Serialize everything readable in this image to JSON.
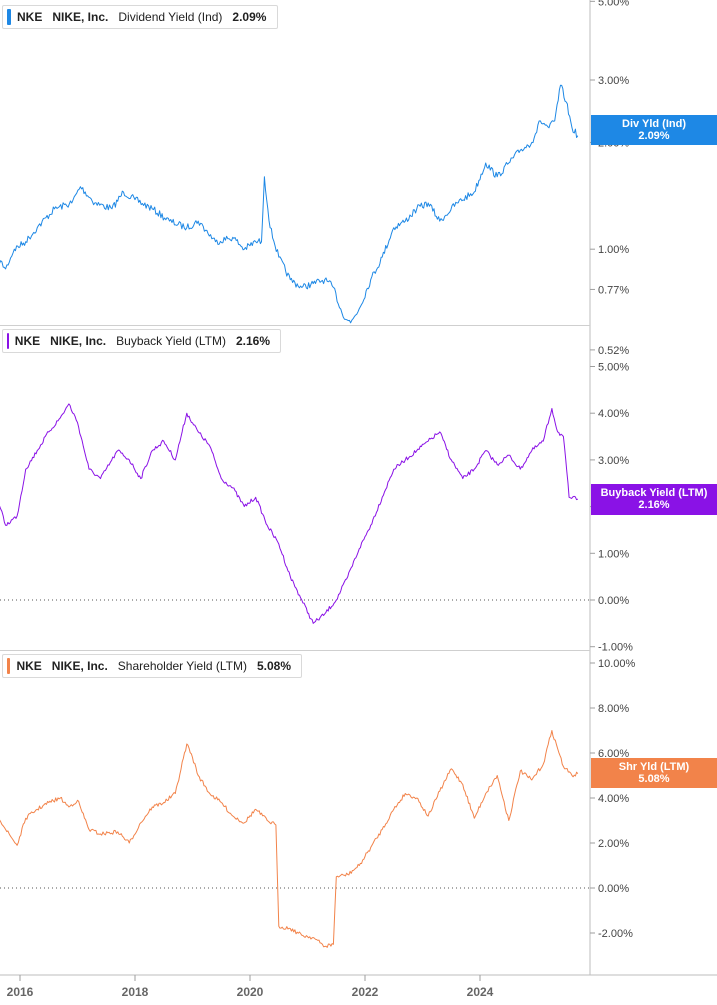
{
  "colors": {
    "dividend": "#1e88e5",
    "buyback": "#8a12e6",
    "shareholder": "#f2834a"
  },
  "x_axis": {
    "ticks": [
      "2016",
      "2018",
      "2020",
      "2022",
      "2024"
    ]
  },
  "panels": [
    {
      "ticker": "NKE",
      "company": "NIKE, Inc.",
      "metric": "Dividend Yield (Ind)",
      "value": "2.09%",
      "tag_label": "Div Yld (Ind)",
      "tag_value": "2.09%",
      "y_ticks": [
        "5.00%",
        "3.00%",
        "2.00%",
        "1.00%",
        "0.77%",
        "0.52%"
      ]
    },
    {
      "ticker": "NKE",
      "company": "NIKE, Inc.",
      "metric": "Buyback Yield (LTM)",
      "value": "2.16%",
      "tag_label": "Buyback Yield (LTM)",
      "tag_value": "2.16%",
      "y_ticks": [
        "5.00%",
        "4.00%",
        "3.00%",
        "2.00%",
        "1.00%",
        "0.00%",
        "-1.00%"
      ]
    },
    {
      "ticker": "NKE",
      "company": "NIKE, Inc.",
      "metric": "Shareholder Yield (LTM)",
      "value": "5.08%",
      "tag_label": "Shr Yld (LTM)",
      "tag_value": "5.08%",
      "y_ticks": [
        "10.00%",
        "8.00%",
        "6.00%",
        "4.00%",
        "2.00%",
        "0.00%",
        "-2.00%"
      ]
    }
  ],
  "chart_data": [
    {
      "type": "line",
      "title": "NKE NIKE, Inc. Dividend Yield (Ind) 2.09%",
      "y_scale": "log",
      "ylim": [
        0.52,
        5.0
      ],
      "xlim": [
        2015.6,
        2025.85
      ],
      "series": [
        {
          "name": "Dividend Yield (Ind)",
          "x": [
            2015.6,
            2015.75,
            2015.9,
            2016.1,
            2016.3,
            2016.6,
            2016.9,
            2017.05,
            2017.3,
            2017.6,
            2017.8,
            2018.0,
            2018.3,
            2018.6,
            2018.9,
            2019.1,
            2019.4,
            2019.7,
            2019.9,
            2020.1,
            2020.2,
            2020.25,
            2020.35,
            2020.5,
            2020.7,
            2020.9,
            2021.1,
            2021.3,
            2021.45,
            2021.6,
            2021.75,
            2021.9,
            2022.1,
            2022.3,
            2022.5,
            2022.7,
            2022.9,
            2023.1,
            2023.3,
            2023.6,
            2023.9,
            2024.1,
            2024.3,
            2024.5,
            2024.7,
            2024.9,
            2025.05,
            2025.2,
            2025.3,
            2025.4,
            2025.5,
            2025.6,
            2025.7
          ],
          "y": [
            0.95,
            0.88,
            1.0,
            1.05,
            1.15,
            1.3,
            1.35,
            1.5,
            1.35,
            1.3,
            1.45,
            1.38,
            1.3,
            1.2,
            1.15,
            1.2,
            1.05,
            1.08,
            1.0,
            1.05,
            1.05,
            1.6,
            1.15,
            0.95,
            0.82,
            0.78,
            0.8,
            0.82,
            0.78,
            0.66,
            0.62,
            0.68,
            0.82,
            0.95,
            1.15,
            1.2,
            1.3,
            1.35,
            1.2,
            1.35,
            1.45,
            1.75,
            1.6,
            1.75,
            1.9,
            2.0,
            2.3,
            2.2,
            2.3,
            2.9,
            2.6,
            2.2,
            2.09
          ]
        }
      ]
    },
    {
      "type": "line",
      "title": "NKE NIKE, Inc. Buyback Yield (LTM) 2.16%",
      "ylim": [
        -1.0,
        5.0
      ],
      "xlim": [
        2015.6,
        2025.85
      ],
      "series": [
        {
          "name": "Buyback Yield (LTM)",
          "x": [
            2015.6,
            2015.75,
            2015.95,
            2016.1,
            2016.3,
            2016.5,
            2016.7,
            2016.85,
            2017.0,
            2017.2,
            2017.4,
            2017.7,
            2017.9,
            2018.1,
            2018.3,
            2018.5,
            2018.7,
            2018.9,
            2019.1,
            2019.3,
            2019.5,
            2019.7,
            2019.9,
            2020.1,
            2020.3,
            2020.5,
            2020.7,
            2020.9,
            2021.1,
            2021.3,
            2021.5,
            2021.7,
            2021.9,
            2022.1,
            2022.3,
            2022.5,
            2022.7,
            2022.9,
            2023.1,
            2023.3,
            2023.5,
            2023.7,
            2023.9,
            2024.1,
            2024.3,
            2024.5,
            2024.7,
            2024.9,
            2025.1,
            2025.25,
            2025.35,
            2025.45,
            2025.55,
            2025.7
          ],
          "y": [
            2.2,
            1.6,
            1.8,
            2.8,
            3.2,
            3.6,
            3.9,
            4.2,
            3.8,
            2.8,
            2.6,
            3.2,
            3.0,
            2.6,
            3.2,
            3.4,
            3.0,
            4.0,
            3.6,
            3.3,
            2.6,
            2.4,
            2.0,
            2.2,
            1.6,
            1.2,
            0.5,
            0.0,
            -0.5,
            -0.3,
            0.0,
            0.5,
            1.1,
            1.6,
            2.2,
            2.8,
            3.0,
            3.2,
            3.4,
            3.6,
            3.0,
            2.6,
            2.8,
            3.2,
            2.9,
            3.1,
            2.8,
            3.2,
            3.4,
            4.1,
            3.6,
            3.5,
            2.2,
            2.16
          ]
        }
      ]
    },
    {
      "type": "line",
      "title": "NKE NIKE, Inc. Shareholder Yield (LTM) 5.08%",
      "ylim": [
        -2.0,
        10.0
      ],
      "xlim": [
        2015.6,
        2025.85
      ],
      "series": [
        {
          "name": "Shareholder Yield (LTM)",
          "x": [
            2015.6,
            2015.75,
            2015.95,
            2016.1,
            2016.3,
            2016.5,
            2016.7,
            2016.85,
            2017.0,
            2017.2,
            2017.4,
            2017.7,
            2017.9,
            2018.1,
            2018.3,
            2018.5,
            2018.7,
            2018.9,
            2019.0,
            2019.1,
            2019.3,
            2019.5,
            2019.7,
            2019.9,
            2020.1,
            2020.3,
            2020.45,
            2020.5,
            2020.7,
            2020.9,
            2021.1,
            2021.3,
            2021.45,
            2021.5,
            2021.7,
            2021.9,
            2022.1,
            2022.3,
            2022.5,
            2022.7,
            2022.9,
            2023.1,
            2023.3,
            2023.5,
            2023.7,
            2023.9,
            2024.1,
            2024.3,
            2024.5,
            2024.7,
            2024.9,
            2025.1,
            2025.25,
            2025.35,
            2025.45,
            2025.6,
            2025.7
          ],
          "y": [
            3.3,
            2.6,
            1.9,
            3.1,
            3.5,
            3.8,
            4.0,
            3.6,
            3.9,
            2.6,
            2.4,
            2.5,
            2.0,
            2.9,
            3.6,
            3.8,
            4.2,
            6.4,
            5.8,
            5.0,
            4.2,
            3.8,
            3.2,
            2.9,
            3.5,
            3.0,
            2.8,
            -1.7,
            -1.8,
            -2.1,
            -2.2,
            -2.6,
            -2.5,
            0.5,
            0.6,
            1.0,
            1.8,
            2.6,
            3.5,
            4.2,
            4.0,
            3.2,
            4.3,
            5.3,
            4.6,
            3.1,
            4.2,
            5.0,
            3.0,
            5.2,
            4.8,
            5.5,
            7.0,
            6.2,
            5.4,
            5.0,
            5.08
          ]
        }
      ]
    }
  ]
}
